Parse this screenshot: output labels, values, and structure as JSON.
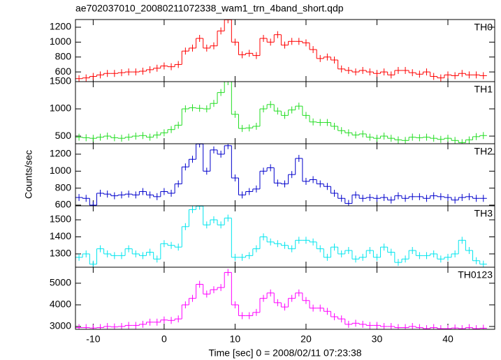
{
  "chart_data": [
    {
      "type": "line",
      "title": "ae702037010_20080211072338_wam1_trn_4band_short.qdp",
      "x": [
        -12,
        -11,
        -10,
        -9,
        -8,
        -7,
        -6,
        -5,
        -4,
        -3,
        -2,
        -1,
        0,
        1,
        2,
        3,
        4,
        5,
        6,
        7,
        8,
        9,
        10,
        11,
        12,
        13,
        14,
        15,
        16,
        17,
        18,
        19,
        20,
        21,
        22,
        23,
        24,
        25,
        26,
        27,
        28,
        29,
        30,
        31,
        32,
        33,
        34,
        35,
        36,
        37,
        38,
        39,
        40,
        41,
        42,
        43,
        44,
        45
      ],
      "series": [
        {
          "name": "TH0",
          "color": "#ff0000",
          "values": [
            510,
            520,
            540,
            560,
            580,
            580,
            590,
            600,
            600,
            610,
            630,
            650,
            680,
            670,
            700,
            880,
            920,
            1050,
            920,
            950,
            1150,
            1300,
            1000,
            830,
            850,
            820,
            1050,
            1000,
            1100,
            960,
            1010,
            1010,
            990,
            900,
            780,
            800,
            760,
            640,
            620,
            600,
            620,
            600,
            580,
            600,
            560,
            620,
            620,
            590,
            570,
            600,
            540,
            520,
            560,
            550,
            580,
            560,
            560,
            550
          ]
        }
      ],
      "xlim": [
        -12.5,
        46.6
      ],
      "xticks": [
        -10,
        0,
        10,
        20,
        30,
        40
      ],
      "ylim": [
        470,
        1303
      ],
      "yticks": [
        600,
        800,
        1000,
        1200
      ]
    },
    {
      "type": "line",
      "x": [
        -12,
        -11,
        -10,
        -9,
        -8,
        -7,
        -6,
        -5,
        -4,
        -3,
        -2,
        -1,
        0,
        1,
        2,
        3,
        4,
        5,
        6,
        7,
        8,
        9,
        10,
        11,
        12,
        13,
        14,
        15,
        16,
        17,
        18,
        19,
        20,
        21,
        22,
        23,
        24,
        25,
        26,
        27,
        28,
        29,
        30,
        31,
        32,
        33,
        34,
        35,
        36,
        37,
        38,
        39,
        40,
        41,
        42,
        43,
        44,
        45
      ],
      "series": [
        {
          "name": "TH1",
          "color": "#22dd22",
          "values": [
            480,
            470,
            460,
            480,
            500,
            470,
            460,
            480,
            500,
            510,
            480,
            520,
            560,
            620,
            700,
            1000,
            1020,
            1010,
            1000,
            1100,
            1300,
            1500,
            900,
            640,
            650,
            680,
            1000,
            1080,
            960,
            880,
            980,
            1050,
            880,
            760,
            750,
            750,
            680,
            600,
            560,
            520,
            540,
            480,
            460,
            500,
            460,
            430,
            420,
            480,
            470,
            480,
            460,
            440,
            460,
            420,
            380,
            430,
            490,
            510
          ]
        }
      ],
      "xlim": [
        -12.5,
        46.6
      ],
      "xticks": [
        -10,
        0,
        10,
        20,
        30,
        40
      ],
      "ylim": [
        360,
        1500
      ],
      "yticks": [
        500,
        1000,
        1500
      ]
    },
    {
      "type": "line",
      "ylabel": "Counts/sec",
      "x": [
        -12,
        -11,
        -10,
        -9,
        -8,
        -7,
        -6,
        -5,
        -4,
        -3,
        -2,
        -1,
        0,
        1,
        2,
        3,
        4,
        5,
        6,
        7,
        8,
        9,
        10,
        11,
        12,
        13,
        14,
        15,
        16,
        17,
        18,
        19,
        20,
        21,
        22,
        23,
        24,
        25,
        26,
        27,
        28,
        29,
        30,
        31,
        32,
        33,
        34,
        35,
        36,
        37,
        38,
        39,
        40,
        41,
        42,
        43,
        44,
        45
      ],
      "series": [
        {
          "name": "TH2",
          "color": "#0000cc",
          "values": [
            690,
            680,
            600,
            740,
            730,
            710,
            720,
            730,
            720,
            760,
            720,
            700,
            760,
            740,
            850,
            1050,
            1140,
            1320,
            1000,
            1250,
            1200,
            1300,
            920,
            720,
            760,
            790,
            1000,
            1040,
            860,
            850,
            960,
            1150,
            880,
            900,
            850,
            820,
            740,
            680,
            620,
            720,
            680,
            690,
            680,
            690,
            660,
            710,
            680,
            700,
            700,
            680,
            710,
            700,
            690,
            660,
            690,
            700,
            680,
            680
          ]
        }
      ],
      "xlim": [
        -12.5,
        46.6
      ],
      "xticks": [
        -10,
        0,
        10,
        20,
        30,
        40
      ],
      "ylim": [
        592,
        1323
      ],
      "yticks": [
        600,
        800,
        1000,
        1200
      ]
    },
    {
      "type": "line",
      "x": [
        -12,
        -11,
        -10,
        -9,
        -8,
        -7,
        -6,
        -5,
        -4,
        -3,
        -2,
        -1,
        0,
        1,
        2,
        3,
        4,
        5,
        6,
        7,
        8,
        9,
        10,
        11,
        12,
        13,
        14,
        15,
        16,
        17,
        18,
        19,
        20,
        21,
        22,
        23,
        24,
        25,
        26,
        27,
        28,
        29,
        30,
        31,
        32,
        33,
        34,
        35,
        36,
        37,
        38,
        39,
        40,
        41,
        42,
        43,
        44,
        45
      ],
      "series": [
        {
          "name": "TH3",
          "color": "#00e5ee",
          "values": [
            1280,
            1300,
            1240,
            1330,
            1300,
            1290,
            1290,
            1330,
            1300,
            1290,
            1310,
            1270,
            1360,
            1350,
            1340,
            1460,
            1560,
            1580,
            1470,
            1500,
            1470,
            1510,
            1280,
            1280,
            1290,
            1330,
            1400,
            1370,
            1360,
            1350,
            1330,
            1380,
            1380,
            1370,
            1330,
            1280,
            1340,
            1300,
            1320,
            1270,
            1280,
            1320,
            1280,
            1340,
            1310,
            1250,
            1270,
            1320,
            1290,
            1290,
            1300,
            1270,
            1280,
            1300,
            1380,
            1320,
            1260,
            1240
          ]
        }
      ],
      "xlim": [
        -12.5,
        46.6
      ],
      "xticks": [
        -10,
        0,
        10,
        20,
        30,
        40
      ],
      "ylim": [
        1222,
        1582
      ],
      "yticks": [
        1300,
        1400,
        1500
      ]
    },
    {
      "type": "line",
      "xlabel": "Time [sec] 0 = 2008/02/11 07:23:38",
      "x": [
        -12,
        -11,
        -10,
        -9,
        -8,
        -7,
        -6,
        -5,
        -4,
        -3,
        -2,
        -1,
        0,
        1,
        2,
        3,
        4,
        5,
        6,
        7,
        8,
        9,
        10,
        11,
        12,
        13,
        14,
        15,
        16,
        17,
        18,
        19,
        20,
        21,
        22,
        23,
        24,
        25,
        26,
        27,
        28,
        29,
        30,
        31,
        32,
        33,
        34,
        35,
        36,
        37,
        38,
        39,
        40,
        41,
        42,
        43,
        44,
        45
      ],
      "series": [
        {
          "name": "TH0123",
          "color": "#ff00ff",
          "values": [
            2950,
            2950,
            2930,
            2950,
            3000,
            2980,
            3000,
            3050,
            3050,
            3100,
            3200,
            3200,
            3300,
            3280,
            3350,
            4000,
            4300,
            4950,
            4500,
            4700,
            4800,
            5500,
            4000,
            3500,
            3500,
            3650,
            4300,
            4550,
            4100,
            3900,
            4300,
            4550,
            4200,
            3850,
            3850,
            3700,
            3450,
            3350,
            3100,
            3150,
            3100,
            3050,
            3050,
            3000,
            3000,
            2950,
            2950,
            3000,
            2950,
            2900,
            2950,
            2900,
            2900,
            2930,
            2900,
            2950,
            2900,
            2920
          ]
        }
      ],
      "xlim": [
        -12.5,
        46.6
      ],
      "xticks": [
        -10,
        0,
        10,
        20,
        30,
        40
      ],
      "ylim": [
        2870,
        5740
      ],
      "yticks": [
        3000,
        4000,
        5000
      ]
    }
  ]
}
